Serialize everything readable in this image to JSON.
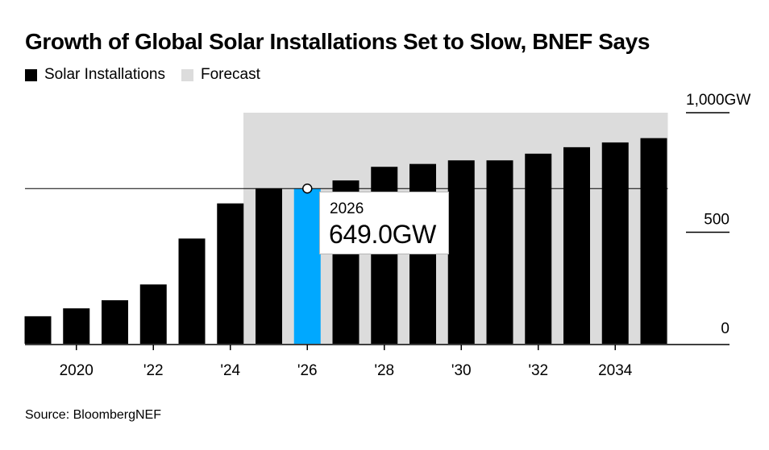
{
  "title": "Growth of Global Solar Installations Set to Slow, BNEF Says",
  "legend": [
    {
      "label": "Solar Installations",
      "color": "#000000"
    },
    {
      "label": "Forecast",
      "color": "#dcdcdc"
    }
  ],
  "source": "Source: BloombergNEF",
  "tooltip": {
    "year": "2026",
    "value": "649.0GW"
  },
  "colors": {
    "bar": "#000000",
    "highlight": "#00a8ff",
    "forecast_band": "#dcdcdc"
  },
  "chart_data": {
    "type": "bar",
    "title": "Growth of Global Solar Installations Set to Slow, BNEF Says",
    "ylabel": "GW",
    "ylim": [
      0,
      1000
    ],
    "categories": [
      2019,
      2020,
      2021,
      2022,
      2023,
      2024,
      2025,
      2026,
      2027,
      2028,
      2029,
      2030,
      2031,
      2032,
      2033,
      2034,
      2035
    ],
    "values": [
      115,
      148,
      182,
      248,
      440,
      587,
      650,
      649,
      683,
      740,
      752,
      767,
      767,
      795,
      822,
      842,
      860
    ],
    "highlight_index": 7,
    "reference_line_value": 649,
    "forecast_range": [
      2025,
      2035
    ],
    "x_ticks": [
      {
        "year": 2020,
        "label": "2020"
      },
      {
        "year": 2022,
        "label": "'22"
      },
      {
        "year": 2024,
        "label": "'24"
      },
      {
        "year": 2026,
        "label": "'26"
      },
      {
        "year": 2028,
        "label": "'28"
      },
      {
        "year": 2030,
        "label": "'30"
      },
      {
        "year": 2032,
        "label": "'32"
      },
      {
        "year": 2034,
        "label": "2034"
      }
    ],
    "y_ticks": [
      {
        "value": 1000,
        "label": "1,000",
        "unit": "GW"
      },
      {
        "value": 500,
        "label": "500",
        "unit": ""
      },
      {
        "value": 0,
        "label": "0",
        "unit": ""
      }
    ]
  }
}
